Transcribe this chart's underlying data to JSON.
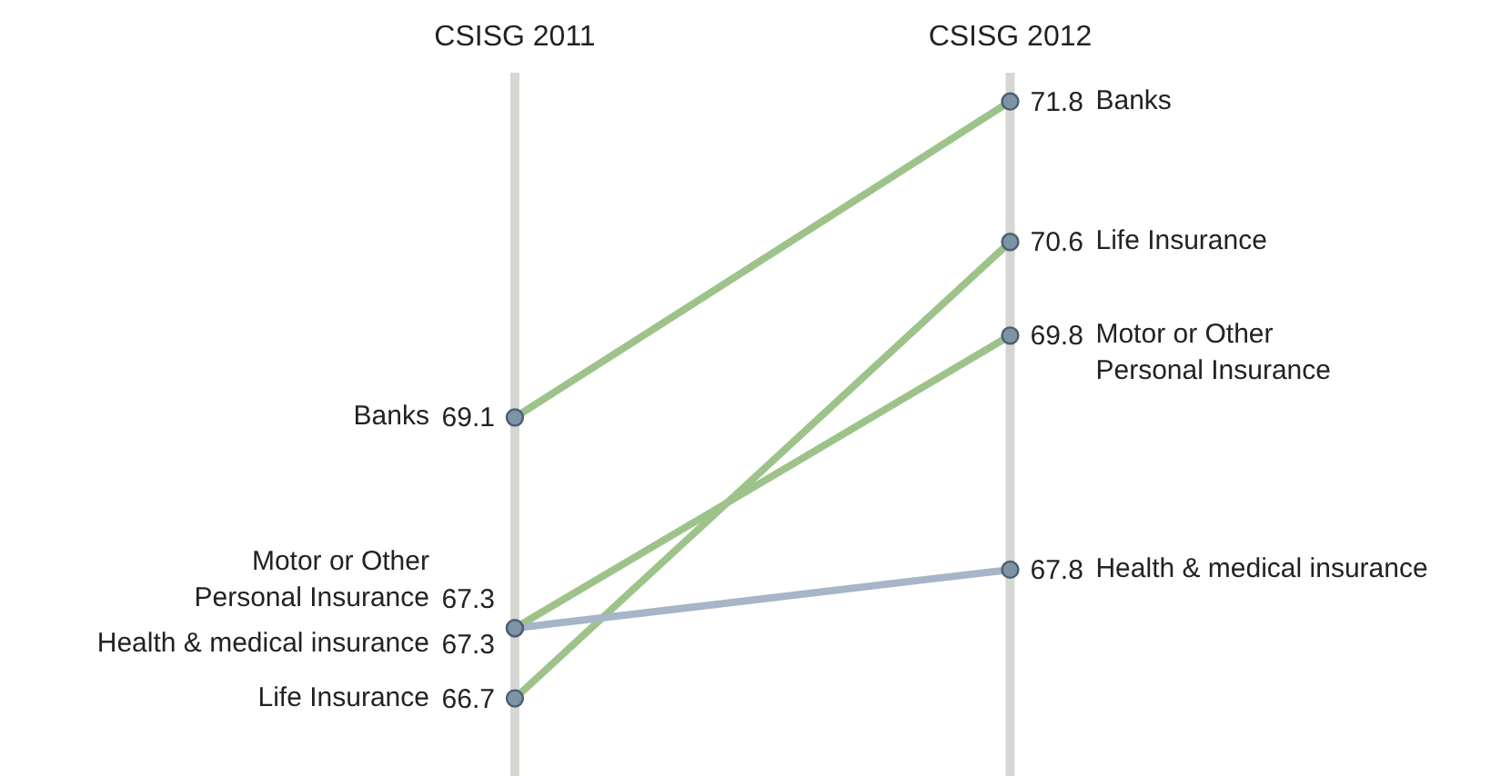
{
  "chart_data": {
    "type": "line",
    "categories": [
      "CSISG 2011",
      "CSISG 2012"
    ],
    "series": [
      {
        "name": "Banks",
        "color": "#9dc38a",
        "values": [
          69.1,
          71.8
        ]
      },
      {
        "name": "Life Insurance",
        "color": "#9dc38a",
        "values": [
          66.7,
          70.6
        ]
      },
      {
        "name": "Motor or Other\nPersonal Insurance",
        "color": "#9dc38a",
        "values": [
          67.3,
          69.8
        ]
      },
      {
        "name": "Health & medical insurance",
        "color": "#a6b5c7",
        "values": [
          67.3,
          67.8
        ]
      }
    ],
    "data_labels": true,
    "marker": "circle",
    "line_style": "solid",
    "grid": "x"
  }
}
